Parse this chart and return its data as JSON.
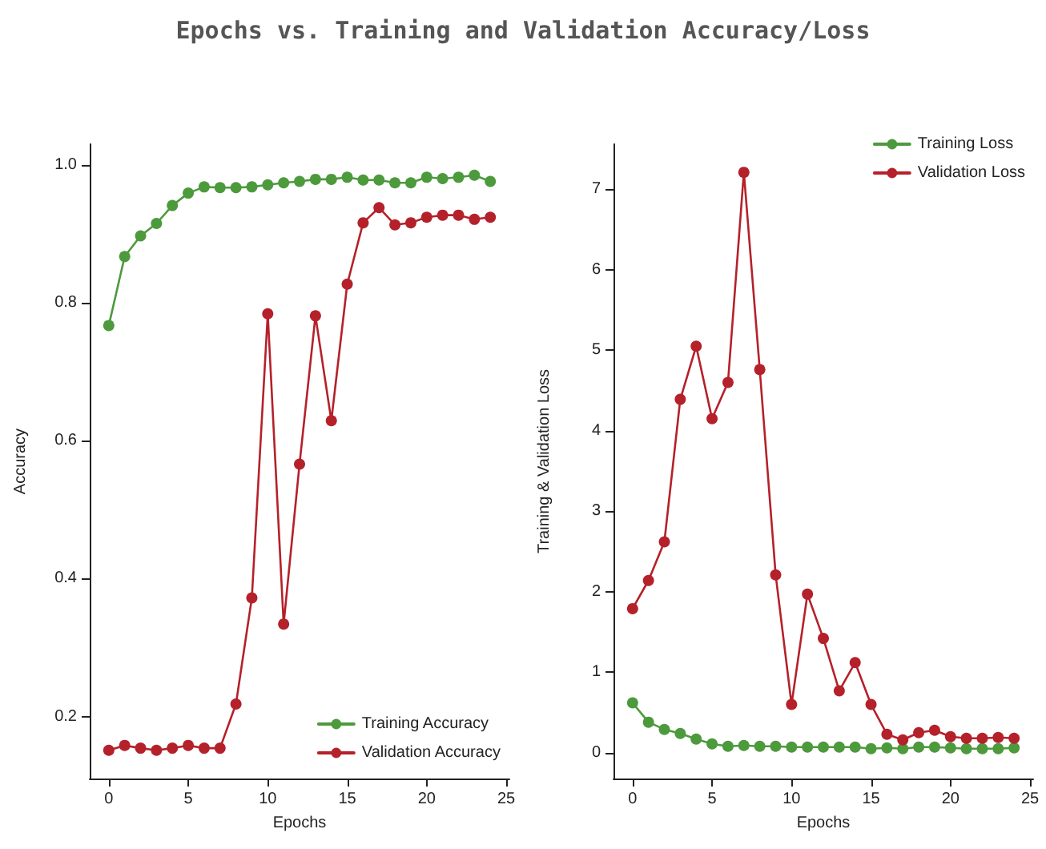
{
  "chart_data": [
    {
      "type": "line",
      "title": "Epochs vs. Training and Validation Accuracy/Loss",
      "xlabel": "Epochs",
      "ylabel": "Accuracy",
      "x": [
        0,
        1,
        2,
        3,
        4,
        5,
        6,
        7,
        8,
        9,
        10,
        11,
        12,
        13,
        14,
        15,
        16,
        17,
        18,
        19,
        20,
        21,
        22,
        23,
        24
      ],
      "series": [
        {
          "name": "Training Accuracy",
          "color": "#4c9a3c",
          "values": [
            0.767,
            0.867,
            0.897,
            0.915,
            0.941,
            0.959,
            0.968,
            0.967,
            0.967,
            0.968,
            0.971,
            0.974,
            0.976,
            0.979,
            0.979,
            0.982,
            0.978,
            0.978,
            0.974,
            0.974,
            0.982,
            0.98,
            0.982,
            0.985,
            0.976
          ]
        },
        {
          "name": "Validation Accuracy",
          "color": "#b5212a",
          "values": [
            0.151,
            0.158,
            0.154,
            0.151,
            0.154,
            0.158,
            0.154,
            0.154,
            0.218,
            0.372,
            0.784,
            0.334,
            0.566,
            0.781,
            0.629,
            0.827,
            0.916,
            0.938,
            0.913,
            0.916,
            0.924,
            0.927,
            0.927,
            0.921,
            0.924
          ]
        }
      ],
      "xlim": [
        -1.2,
        25.2
      ],
      "xticks": [
        0,
        5,
        10,
        15,
        20,
        25
      ],
      "ylim": [
        0.11,
        1.03
      ],
      "yticks": [
        {
          "value": 0.2,
          "label": "0.2"
        },
        {
          "value": 0.4,
          "label": "0.4"
        },
        {
          "value": 0.6,
          "label": "0.6"
        },
        {
          "value": 0.8,
          "label": "0.8"
        },
        {
          "value": 1.0,
          "label": "1.0"
        }
      ],
      "grid": false,
      "legend": "bottom right",
      "marker": "circle",
      "line_style": "solid"
    },
    {
      "type": "line",
      "xlabel": "Epochs",
      "ylabel": "Training & Validation Loss",
      "x": [
        0,
        1,
        2,
        3,
        4,
        5,
        6,
        7,
        8,
        9,
        10,
        11,
        12,
        13,
        14,
        15,
        16,
        17,
        18,
        19,
        20,
        21,
        22,
        23,
        24
      ],
      "series": [
        {
          "name": "Training Loss",
          "color": "#4c9a3c",
          "values": [
            0.62,
            0.38,
            0.29,
            0.24,
            0.17,
            0.11,
            0.08,
            0.09,
            0.08,
            0.08,
            0.07,
            0.07,
            0.07,
            0.07,
            0.07,
            0.05,
            0.06,
            0.05,
            0.07,
            0.07,
            0.06,
            0.05,
            0.05,
            0.05,
            0.06
          ]
        },
        {
          "name": "Validation Loss",
          "color": "#b5212a",
          "values": [
            1.79,
            2.14,
            2.62,
            4.39,
            5.05,
            4.15,
            4.6,
            7.21,
            4.76,
            2.21,
            0.6,
            1.97,
            1.42,
            0.77,
            1.12,
            0.6,
            0.23,
            0.16,
            0.25,
            0.28,
            0.2,
            0.18,
            0.18,
            0.19,
            0.18
          ]
        }
      ],
      "xlim": [
        -1.2,
        25.2
      ],
      "xticks": [
        0,
        5,
        10,
        15,
        20,
        25
      ],
      "ylim": [
        -0.32,
        7.56
      ],
      "yticks": [
        0,
        1,
        2,
        3,
        4,
        5,
        6,
        7
      ],
      "grid": false,
      "legend": "top right",
      "marker": "circle",
      "line_style": "solid"
    }
  ]
}
